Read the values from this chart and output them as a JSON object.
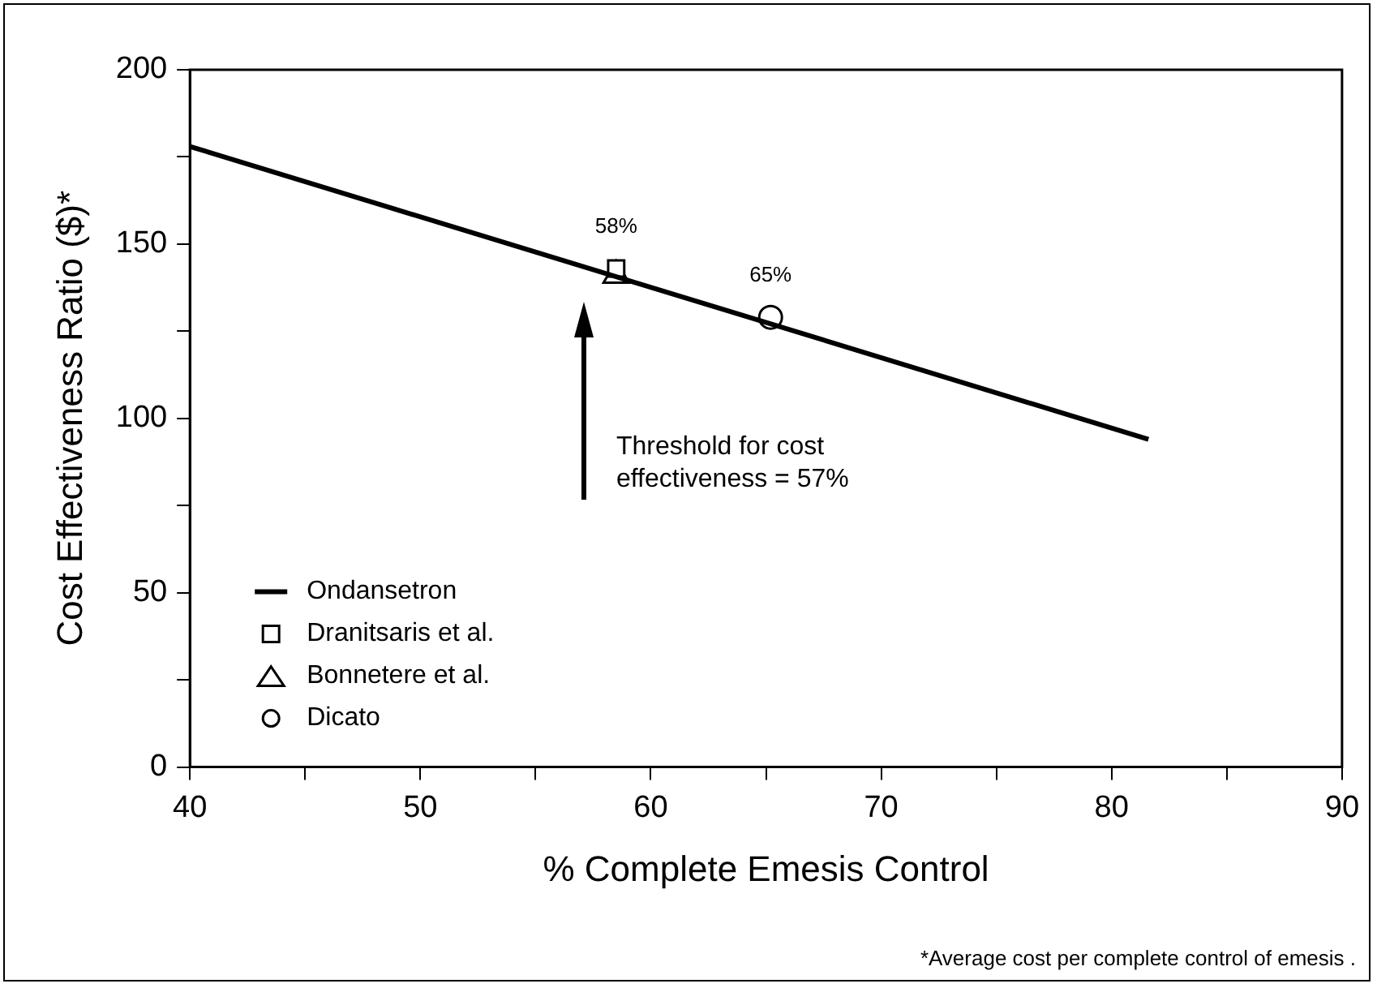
{
  "chart_data": {
    "type": "line",
    "xlabel": "% Complete Emesis Control",
    "ylabel": "Cost Effectiveness Ratio ($)*",
    "xlim": [
      40,
      90
    ],
    "xticks": [
      40,
      {
        "value": 45,
        "label": null
      },
      50,
      {
        "value": 55,
        "label": null
      },
      60,
      {
        "value": 65,
        "label": null
      },
      70,
      {
        "value": 75,
        "label": null
      },
      80,
      {
        "value": 85,
        "label": null
      },
      90
    ],
    "ylim": [
      0,
      200
    ],
    "yticks": [
      0,
      {
        "value": 25,
        "label": null
      },
      50,
      {
        "value": 75,
        "label": null
      },
      100,
      {
        "value": 125,
        "label": null
      },
      150,
      {
        "value": 175,
        "label": null
      },
      200
    ],
    "series": [
      {
        "name": "Ondansetron",
        "color": "#000000",
        "marker": "none",
        "line_style": "solid",
        "x": [
          40,
          81.6
        ],
        "values": [
          178,
          94
        ]
      },
      {
        "name": "Dranitsaris et al.",
        "type": "scatter",
        "color": "#000000",
        "marker": "square",
        "x": [
          58.5
        ],
        "values": [
          143
        ]
      },
      {
        "name": "Bonnetere et al.",
        "type": "scatter",
        "color": "#000000",
        "marker": "triangle",
        "x": [
          58.5
        ],
        "values": [
          141
        ]
      },
      {
        "name": "Dicato",
        "type": "scatter",
        "color": "#000000",
        "marker": "circle",
        "x": [
          65.2
        ],
        "values": [
          129
        ]
      }
    ],
    "annotations": [
      {
        "text": "58%",
        "x": 58.5,
        "y": 143
      },
      {
        "text": "65%",
        "x": 65.2,
        "y": 129
      },
      "Threshold for cost effectiveness = 57%",
      "*Average cost per complete control of emesis ."
    ],
    "legend": "bottom left",
    "grid": false
  }
}
